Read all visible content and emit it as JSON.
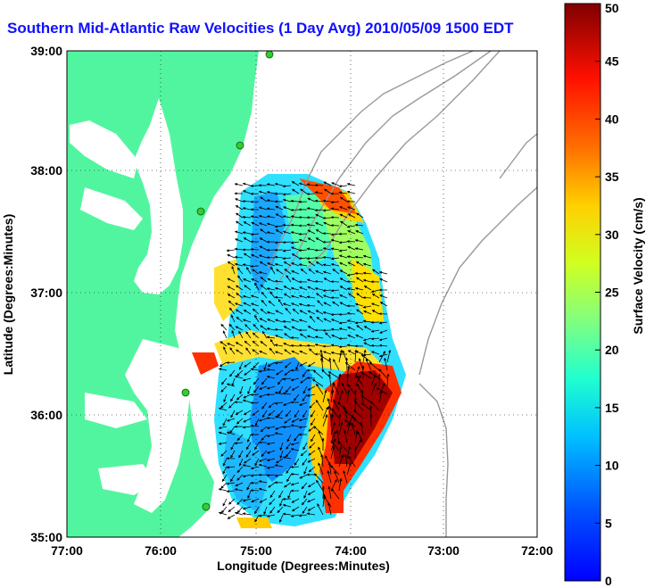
{
  "title": "Southern Mid-Atlantic Raw Velocities (1 Day Avg) 2010/05/09 1500 EDT",
  "x_axis": {
    "label": "Longitude (Degrees:Minutes)",
    "ticks": [
      "77:00",
      "76:00",
      "75:00",
      "74:00",
      "73:00",
      "72:00"
    ]
  },
  "y_axis": {
    "label": "Latitude (Degrees:Minutes)",
    "ticks": [
      "39:00",
      "38:00",
      "37:00",
      "36:00",
      "35:00"
    ]
  },
  "colorbar": {
    "label": "Surface Velocity (cm/s)",
    "ticks": [
      "50",
      "45",
      "40",
      "35",
      "30",
      "25",
      "20",
      "15",
      "10",
      "5",
      "0"
    ],
    "min": 0,
    "max": 50,
    "colormap": "jet"
  },
  "colors": {
    "land": "#52f59f",
    "title": "#1010ff",
    "grid": "#000000",
    "bathymetry": "#999999",
    "station": "#33cc33"
  }
}
